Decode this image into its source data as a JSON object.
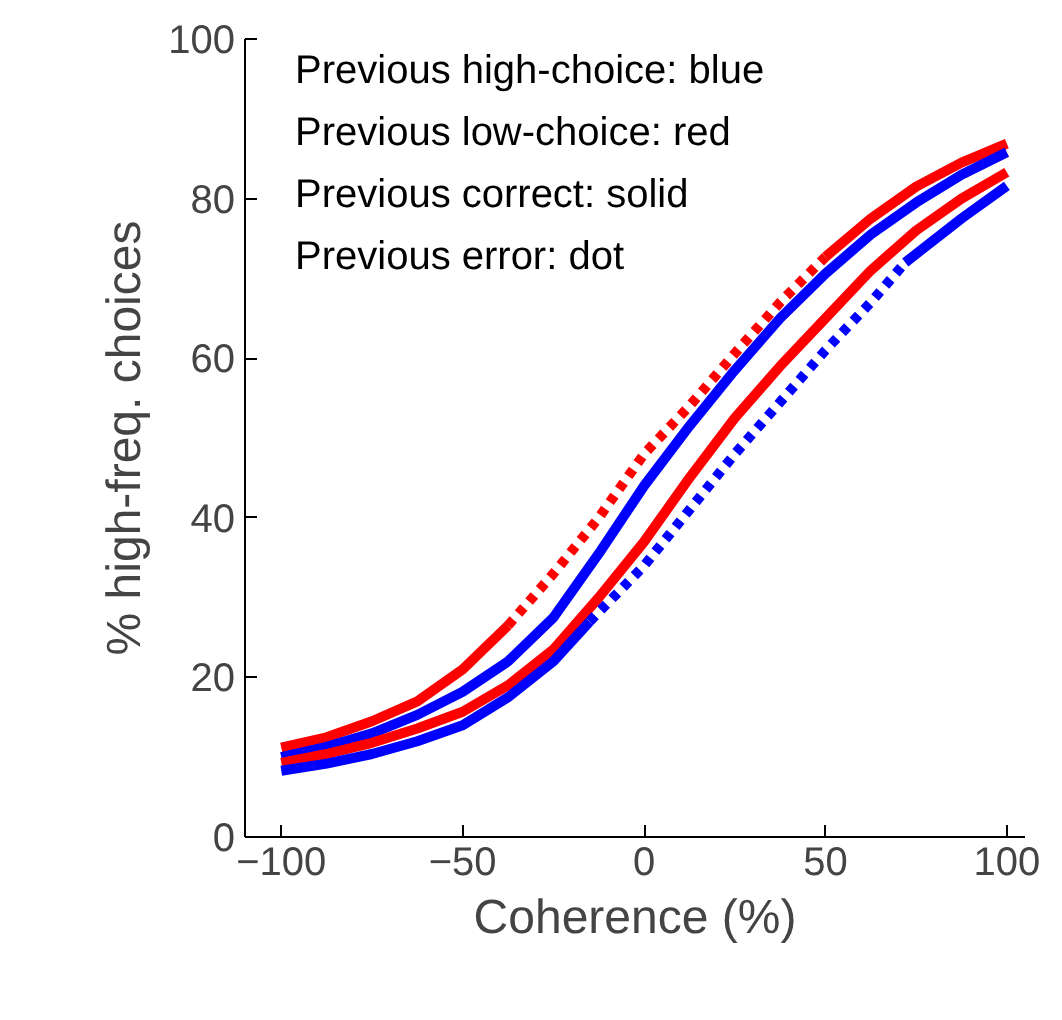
{
  "chart_data": {
    "type": "line",
    "xlabel": "Coherence (%)",
    "ylabel": "% high-freq. choices",
    "xlim": [
      -110,
      105
    ],
    "ylim": [
      0,
      100
    ],
    "xticks": [
      {
        "value": -100,
        "label": "−100"
      },
      {
        "value": -50,
        "label": "−50"
      },
      0,
      50,
      100
    ],
    "yticks": [
      0,
      20,
      40,
      60,
      80,
      100
    ],
    "annotations": [
      "Previous high-choice: blue",
      "Previous low-choice: red",
      "Previous correct: solid",
      "Previous error: dot"
    ],
    "series": [
      {
        "color": "#ff0000",
        "line_style": "solid",
        "x": [
          -100,
          -87.5,
          -75,
          -62.5,
          -50,
          -37.5
        ],
        "values": [
          11.2,
          12.5,
          14.5,
          17,
          21,
          26.5
        ]
      },
      {
        "color": "#ff0000",
        "line_style": "dotted",
        "x": [
          -37.5,
          -25,
          -12.5,
          0,
          12.5,
          25,
          37.5,
          50
        ],
        "values": [
          26.5,
          33,
          40,
          48,
          54,
          60.6,
          67,
          72.7
        ]
      },
      {
        "color": "#ff0000",
        "line_style": "solid",
        "x": [
          50,
          62.5,
          75,
          87.5,
          100
        ],
        "values": [
          72.7,
          77.5,
          81.5,
          84.5,
          86.9
        ]
      },
      {
        "color": "#0000ff",
        "line_style": "solid",
        "x": [
          -100,
          -87.5,
          -75,
          -62.5,
          -50,
          -37.5,
          -25,
          -12.5,
          0,
          12.5,
          25,
          37.5,
          50,
          62.5,
          75,
          87.5,
          100
        ],
        "values": [
          10,
          11.3,
          13,
          15.3,
          18.2,
          22,
          27.5,
          35.5,
          44,
          51.5,
          58.5,
          65,
          70.6,
          75.5,
          79.5,
          83,
          85.8
        ]
      },
      {
        "color": "#ff0000",
        "line_style": "solid",
        "x": [
          -100,
          -87.5,
          -75,
          -62.5,
          -50,
          -37.5,
          -25,
          -12.5,
          0,
          12.5,
          25,
          37.5,
          50,
          62.5,
          75,
          87.5,
          100
        ],
        "values": [
          9.3,
          10.4,
          11.8,
          13.6,
          15.7,
          19,
          23.5,
          30,
          37,
          45,
          52.5,
          59,
          65,
          71,
          76,
          80,
          83.3
        ]
      },
      {
        "color": "#0000ff",
        "line_style": "solid",
        "x": [
          -100,
          -87.5,
          -75,
          -62.5,
          -50,
          -37.5,
          -25,
          -15
        ],
        "values": [
          8.3,
          9.2,
          10.4,
          12,
          14,
          17.5,
          22,
          27
        ]
      },
      {
        "color": "#0000ff",
        "line_style": "dotted",
        "x": [
          -15,
          0,
          12.5,
          25,
          37.5,
          50,
          62.5,
          72
        ],
        "values": [
          27,
          34,
          41,
          48,
          54.5,
          61,
          67,
          72
        ]
      },
      {
        "color": "#0000ff",
        "line_style": "solid",
        "x": [
          72,
          87.5,
          100
        ],
        "values": [
          72,
          77.5,
          81.6
        ]
      }
    ]
  }
}
